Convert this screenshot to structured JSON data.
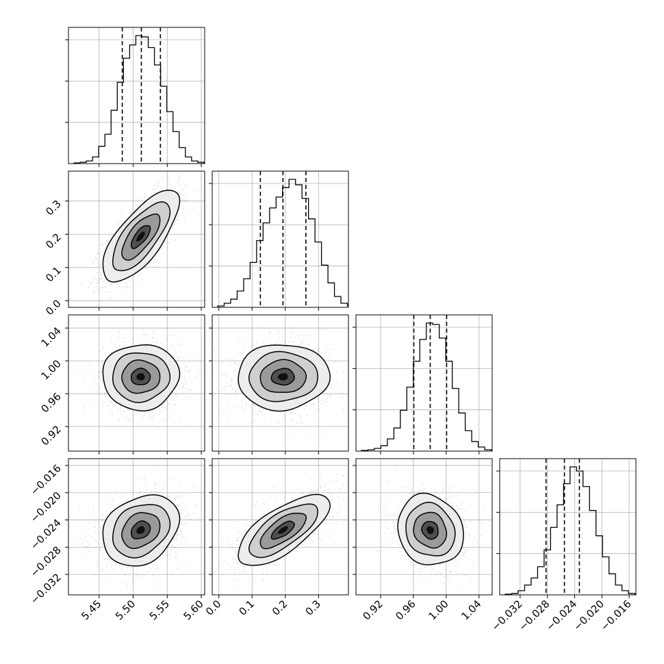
{
  "chart_data": {
    "type": "corner",
    "parameters": [
      {
        "range": [
          5.405,
          5.605
        ],
        "ticks": [
          "5.45",
          "5.50",
          "5.55",
          "5.60"
        ],
        "tick_values": [
          5.45,
          5.5,
          5.55,
          5.6
        ],
        "quantiles": [
          5.484,
          5.512,
          5.54
        ],
        "truth": null,
        "hist": [
          0.5,
          1,
          2,
          5,
          13,
          22,
          40,
          61,
          79,
          89,
          96,
          95,
          87,
          74,
          58,
          39,
          24,
          12,
          5,
          2,
          1,
          0
        ]
      },
      {
        "range": [
          -0.02,
          0.39
        ],
        "ticks": [
          "0.0",
          "0.1",
          "0.2",
          "0.3"
        ],
        "tick_values": [
          0.0,
          0.1,
          0.2,
          0.3
        ],
        "quantiles": [
          0.125,
          0.193,
          0.262
        ],
        "truth": null,
        "hist": [
          1,
          3,
          6,
          12,
          21,
          33,
          49,
          62,
          73,
          81,
          88,
          94,
          90,
          80,
          65,
          48,
          31,
          18,
          8,
          3,
          1
        ]
      },
      {
        "range": [
          0.89,
          1.056
        ],
        "ticks": [
          "0.92",
          "0.96",
          "1.00",
          "1.04"
        ],
        "tick_values": [
          0.92,
          0.96,
          1.0,
          1.04
        ],
        "quantiles": [
          0.9605,
          0.9805,
          1.0005
        ],
        "truth": null,
        "hist": [
          0.5,
          1,
          2,
          4,
          9,
          17,
          30,
          47,
          66,
          82,
          94,
          93,
          83,
          66,
          46,
          28,
          15,
          7,
          3,
          1,
          0.5
        ]
      },
      {
        "range": [
          -0.035,
          -0.015
        ],
        "ticks": [
          "−0.032",
          "−0.028",
          "−0.024",
          "−0.020",
          "−0.016"
        ],
        "tick_values": [
          -0.032,
          -0.028,
          -0.024,
          -0.02,
          -0.016
        ],
        "quantiles": [
          -0.0282,
          -0.0255,
          -0.0233
        ],
        "truth": null,
        "hist": [
          0.5,
          1,
          3,
          7,
          12,
          20,
          32,
          48,
          64,
          79,
          91,
          88,
          77,
          60,
          42,
          27,
          15,
          7,
          3,
          1,
          0.5
        ]
      }
    ],
    "hist_ticks": [
      3,
      3,
      3,
      3
    ],
    "pairs": [
      {
        "x": 0,
        "y": 1,
        "center": [
          5.511,
          0.193
        ],
        "sd": [
          0.028,
          0.069
        ],
        "rho": 0.72
      },
      {
        "x": 0,
        "y": 2,
        "center": [
          5.511,
          0.9805
        ],
        "sd": [
          0.028,
          0.02
        ],
        "rho": 0.02
      },
      {
        "x": 1,
        "y": 2,
        "center": [
          0.193,
          0.9805
        ],
        "sd": [
          0.069,
          0.02
        ],
        "rho": 0.03
      },
      {
        "x": 0,
        "y": 3,
        "center": [
          5.511,
          -0.0255
        ],
        "sd": [
          0.028,
          0.0026
        ],
        "rho": 0.25
      },
      {
        "x": 1,
        "y": 3,
        "center": [
          0.193,
          -0.0255
        ],
        "sd": [
          0.069,
          0.0026
        ],
        "rho": 0.7
      },
      {
        "x": 2,
        "y": 3,
        "center": [
          0.9805,
          -0.0255
        ],
        "sd": [
          0.02,
          0.0026
        ],
        "rho": -0.12
      }
    ],
    "grid": true,
    "colors": {
      "line": "#000000",
      "grid": "#b0b0b0",
      "points": "#8c8c8c"
    }
  }
}
